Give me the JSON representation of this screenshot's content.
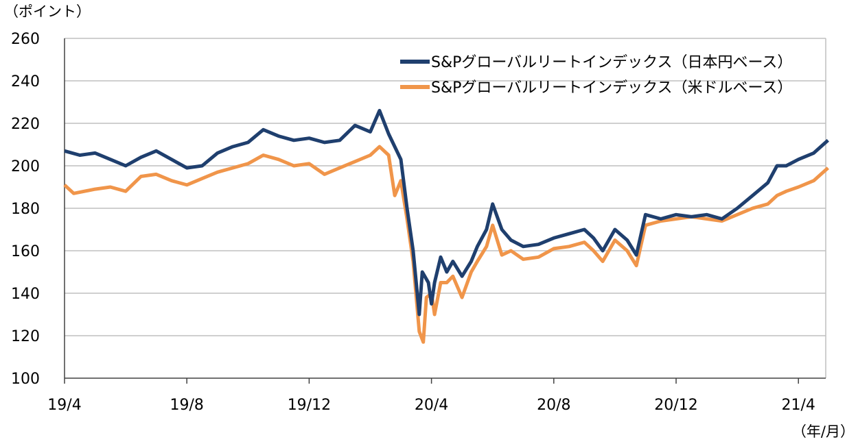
{
  "chart_data": {
    "type": "line",
    "ylabel": "（ポイント）",
    "xlabel": "（年/月）",
    "ylim": [
      100,
      260
    ],
    "yticks": [
      "100",
      "120",
      "140",
      "160",
      "180",
      "200",
      "220",
      "240",
      "260"
    ],
    "xticks": [
      {
        "label": "19/4",
        "date": "2019-04-01"
      },
      {
        "label": "19/8",
        "date": "2019-08-01"
      },
      {
        "label": "19/12",
        "date": "2019-12-01"
      },
      {
        "label": "20/4",
        "date": "2020-04-01"
      },
      {
        "label": "20/8",
        "date": "2020-08-01"
      },
      {
        "label": "20/12",
        "date": "2020-12-01"
      },
      {
        "label": "21/4",
        "date": "2021-04-01"
      }
    ],
    "grid": true,
    "legend_position": "top-right",
    "series": [
      {
        "name": "S&Pグローバルリートインデックス（日本円ベース）",
        "color": "#1f3f6e",
        "points": [
          [
            "2019-04-01",
            207
          ],
          [
            "2019-04-16",
            205
          ],
          [
            "2019-05-01",
            206
          ],
          [
            "2019-05-16",
            203
          ],
          [
            "2019-06-01",
            200
          ],
          [
            "2019-06-16",
            204
          ],
          [
            "2019-07-01",
            207
          ],
          [
            "2019-07-16",
            203
          ],
          [
            "2019-08-01",
            199
          ],
          [
            "2019-08-16",
            200
          ],
          [
            "2019-09-01",
            206
          ],
          [
            "2019-09-16",
            209
          ],
          [
            "2019-10-01",
            211
          ],
          [
            "2019-10-16",
            217
          ],
          [
            "2019-11-01",
            214
          ],
          [
            "2019-11-16",
            212
          ],
          [
            "2019-12-01",
            213
          ],
          [
            "2019-12-16",
            211
          ],
          [
            "2020-01-01",
            212
          ],
          [
            "2020-01-16",
            219
          ],
          [
            "2020-02-01",
            216
          ],
          [
            "2020-02-10",
            226
          ],
          [
            "2020-02-19",
            215
          ],
          [
            "2020-03-01",
            203
          ],
          [
            "2020-03-07",
            180
          ],
          [
            "2020-03-13",
            160
          ],
          [
            "2020-03-19",
            130
          ],
          [
            "2020-03-22",
            150
          ],
          [
            "2020-03-28",
            145
          ],
          [
            "2020-04-01",
            135
          ],
          [
            "2020-04-04",
            145
          ],
          [
            "2020-04-10",
            157
          ],
          [
            "2020-04-16",
            150
          ],
          [
            "2020-04-22",
            155
          ],
          [
            "2020-05-01",
            148
          ],
          [
            "2020-05-10",
            155
          ],
          [
            "2020-05-16",
            162
          ],
          [
            "2020-05-25",
            170
          ],
          [
            "2020-06-01",
            182
          ],
          [
            "2020-06-10",
            170
          ],
          [
            "2020-06-19",
            165
          ],
          [
            "2020-07-01",
            162
          ],
          [
            "2020-07-16",
            163
          ],
          [
            "2020-08-01",
            166
          ],
          [
            "2020-08-16",
            168
          ],
          [
            "2020-09-01",
            170
          ],
          [
            "2020-09-10",
            166
          ],
          [
            "2020-09-19",
            160
          ],
          [
            "2020-10-01",
            170
          ],
          [
            "2020-10-13",
            165
          ],
          [
            "2020-10-22",
            158
          ],
          [
            "2020-11-01",
            177
          ],
          [
            "2020-11-16",
            175
          ],
          [
            "2020-12-01",
            177
          ],
          [
            "2020-12-16",
            176
          ],
          [
            "2021-01-01",
            177
          ],
          [
            "2021-01-16",
            175
          ],
          [
            "2021-02-01",
            180
          ],
          [
            "2021-02-16",
            186
          ],
          [
            "2021-03-01",
            192
          ],
          [
            "2021-03-10",
            200
          ],
          [
            "2021-03-19",
            200
          ],
          [
            "2021-04-01",
            203
          ],
          [
            "2021-04-16",
            206
          ],
          [
            "2021-04-30",
            212
          ]
        ]
      },
      {
        "name": "S&Pグローバルリートインデックス（米ドルベース）",
        "color": "#f0954a",
        "points": [
          [
            "2019-04-01",
            191
          ],
          [
            "2019-04-10",
            187
          ],
          [
            "2019-05-01",
            189
          ],
          [
            "2019-05-16",
            190
          ],
          [
            "2019-06-01",
            188
          ],
          [
            "2019-06-16",
            195
          ],
          [
            "2019-07-01",
            196
          ],
          [
            "2019-07-16",
            193
          ],
          [
            "2019-08-01",
            191
          ],
          [
            "2019-08-16",
            194
          ],
          [
            "2019-09-01",
            197
          ],
          [
            "2019-09-16",
            199
          ],
          [
            "2019-10-01",
            201
          ],
          [
            "2019-10-16",
            205
          ],
          [
            "2019-11-01",
            203
          ],
          [
            "2019-11-16",
            200
          ],
          [
            "2019-12-01",
            201
          ],
          [
            "2019-12-16",
            196
          ],
          [
            "2020-01-01",
            199
          ],
          [
            "2020-01-16",
            202
          ],
          [
            "2020-02-01",
            205
          ],
          [
            "2020-02-10",
            209
          ],
          [
            "2020-02-19",
            205
          ],
          [
            "2020-02-25",
            186
          ],
          [
            "2020-03-01",
            193
          ],
          [
            "2020-03-07",
            175
          ],
          [
            "2020-03-13",
            155
          ],
          [
            "2020-03-19",
            122
          ],
          [
            "2020-03-23",
            117
          ],
          [
            "2020-03-26",
            138
          ],
          [
            "2020-04-01",
            140
          ],
          [
            "2020-04-04",
            130
          ],
          [
            "2020-04-10",
            145
          ],
          [
            "2020-04-16",
            145
          ],
          [
            "2020-04-22",
            148
          ],
          [
            "2020-05-01",
            138
          ],
          [
            "2020-05-10",
            150
          ],
          [
            "2020-05-16",
            155
          ],
          [
            "2020-05-25",
            162
          ],
          [
            "2020-06-01",
            172
          ],
          [
            "2020-06-10",
            158
          ],
          [
            "2020-06-19",
            160
          ],
          [
            "2020-07-01",
            156
          ],
          [
            "2020-07-16",
            157
          ],
          [
            "2020-08-01",
            161
          ],
          [
            "2020-08-16",
            162
          ],
          [
            "2020-09-01",
            164
          ],
          [
            "2020-09-10",
            160
          ],
          [
            "2020-09-19",
            155
          ],
          [
            "2020-10-01",
            165
          ],
          [
            "2020-10-13",
            160
          ],
          [
            "2020-10-22",
            153
          ],
          [
            "2020-11-01",
            172
          ],
          [
            "2020-11-16",
            174
          ],
          [
            "2020-12-01",
            175
          ],
          [
            "2020-12-16",
            176
          ],
          [
            "2021-01-01",
            175
          ],
          [
            "2021-01-16",
            174
          ],
          [
            "2021-02-01",
            177
          ],
          [
            "2021-02-16",
            180
          ],
          [
            "2021-03-01",
            182
          ],
          [
            "2021-03-10",
            186
          ],
          [
            "2021-03-19",
            188
          ],
          [
            "2021-04-01",
            190
          ],
          [
            "2021-04-16",
            193
          ],
          [
            "2021-04-30",
            199
          ]
        ]
      }
    ]
  }
}
